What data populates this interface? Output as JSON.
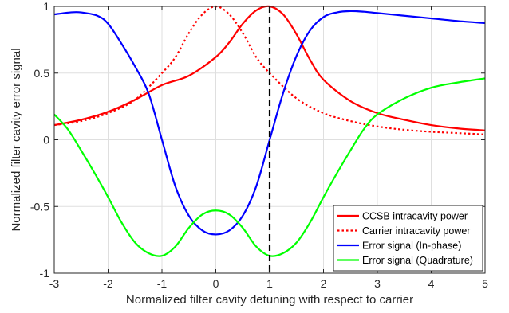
{
  "chart_data": {
    "type": "line",
    "title": "",
    "xlabel": "Normalized filter cavity detuning with respect to carrier",
    "ylabel": "Normalized filter cavity error signal",
    "xlim": [
      -3,
      5
    ],
    "ylim": [
      -1,
      1
    ],
    "x_ticks": [
      -3,
      -2,
      -1,
      0,
      1,
      2,
      3,
      4,
      5
    ],
    "x_tick_labels": [
      "-3",
      "-2",
      "-1",
      "0",
      "1",
      "2",
      "3",
      "4",
      "5"
    ],
    "y_ticks": [
      -1,
      -0.5,
      0,
      0.5,
      1
    ],
    "y_tick_labels": [
      "-1",
      "-0.5",
      "0",
      "0.5",
      "1"
    ],
    "grid": true,
    "legend_position": "bottom-right",
    "series": [
      {
        "name": "CCSB intracavity power",
        "color": "#ff0000",
        "style": "solid",
        "x": [
          -3,
          -2.5,
          -2,
          -1.5,
          -1,
          -0.5,
          0,
          0.25,
          0.5,
          0.75,
          1,
          1.25,
          1.5,
          1.75,
          2,
          2.5,
          3,
          3.5,
          4,
          4.5,
          5
        ],
        "y": [
          0.11,
          0.15,
          0.21,
          0.3,
          0.41,
          0.48,
          0.62,
          0.73,
          0.87,
          0.97,
          1.0,
          0.94,
          0.79,
          0.6,
          0.45,
          0.29,
          0.2,
          0.15,
          0.11,
          0.085,
          0.07
        ]
      },
      {
        "name": "Carrier intracavity power",
        "color": "#ff0000",
        "style": "dotted",
        "x": [
          -3,
          -2.5,
          -2,
          -1.5,
          -1,
          -0.75,
          -0.5,
          -0.25,
          0,
          0.25,
          0.5,
          0.75,
          1,
          1.5,
          2,
          2.5,
          3,
          3.5,
          4,
          4.5,
          5
        ],
        "y": [
          0.11,
          0.14,
          0.2,
          0.3,
          0.5,
          0.62,
          0.8,
          0.94,
          1.0,
          0.94,
          0.8,
          0.62,
          0.5,
          0.31,
          0.2,
          0.14,
          0.1,
          0.075,
          0.06,
          0.05,
          0.04
        ]
      },
      {
        "name": "Error signal (In-phase)",
        "color": "#0000ff",
        "style": "solid",
        "x": [
          -3,
          -2.7,
          -2.5,
          -2.2,
          -2,
          -1.75,
          -1.5,
          -1.25,
          -1,
          -0.75,
          -0.5,
          -0.25,
          0,
          0.25,
          0.5,
          0.75,
          1,
          1.25,
          1.5,
          1.75,
          2,
          2.25,
          2.5,
          2.75,
          3,
          3.5,
          4,
          4.5,
          5
        ],
        "y": [
          0.94,
          0.955,
          0.955,
          0.93,
          0.87,
          0.72,
          0.55,
          0.35,
          0.0,
          -0.35,
          -0.57,
          -0.68,
          -0.71,
          -0.68,
          -0.57,
          -0.35,
          0.0,
          0.35,
          0.63,
          0.82,
          0.92,
          0.955,
          0.965,
          0.96,
          0.95,
          0.93,
          0.91,
          0.89,
          0.875
        ]
      },
      {
        "name": "Error signal (Quadrature)",
        "color": "#00ff00",
        "style": "solid",
        "x": [
          -3,
          -2.75,
          -2.5,
          -2.25,
          -2,
          -1.75,
          -1.5,
          -1.25,
          -1,
          -0.75,
          -0.5,
          -0.25,
          0,
          0.25,
          0.5,
          0.75,
          1,
          1.25,
          1.5,
          1.75,
          2,
          2.25,
          2.5,
          2.75,
          3,
          3.5,
          4,
          4.5,
          5
        ],
        "y": [
          0.19,
          0.08,
          -0.08,
          -0.25,
          -0.43,
          -0.62,
          -0.77,
          -0.85,
          -0.87,
          -0.8,
          -0.66,
          -0.56,
          -0.53,
          -0.56,
          -0.66,
          -0.8,
          -0.87,
          -0.85,
          -0.77,
          -0.62,
          -0.43,
          -0.25,
          -0.08,
          0.08,
          0.19,
          0.31,
          0.39,
          0.43,
          0.46
        ]
      }
    ],
    "annotations": [
      {
        "type": "vertical-dashed-line",
        "x": 1,
        "color": "#000000"
      }
    ]
  }
}
